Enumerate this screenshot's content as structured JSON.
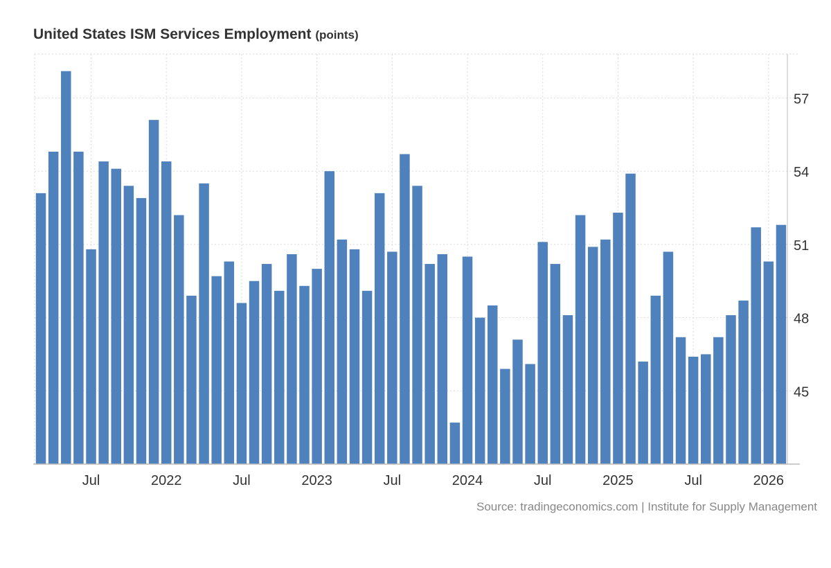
{
  "chart_data": {
    "type": "bar",
    "title": "United States ISM Services Employment",
    "unit": "(points)",
    "source": "Source: tradingeconomics.com | Institute for Supply Management",
    "xlabel": "",
    "ylabel": "",
    "ylim": [
      42.0,
      58.8
    ],
    "yticks": [
      45,
      48,
      51,
      54,
      57
    ],
    "grid": true,
    "colors": {
      "bar": "#4f81bd",
      "grid": "#d9d9d9",
      "axis": "#bbbbbb",
      "tick_text": "#333333"
    },
    "categories": [
      "2021-03",
      "2021-04",
      "2021-05",
      "2021-06",
      "2021-07",
      "2021-08",
      "2021-09",
      "2021-10",
      "2021-11",
      "2021-12",
      "2022-01",
      "2022-02",
      "2022-03",
      "2022-04",
      "2022-05",
      "2022-06",
      "2022-07",
      "2022-08",
      "2022-09",
      "2022-10",
      "2022-11",
      "2022-12",
      "2023-01",
      "2023-02",
      "2023-03",
      "2023-04",
      "2023-05",
      "2023-06",
      "2023-07",
      "2023-08",
      "2023-09",
      "2023-10",
      "2023-11",
      "2023-12",
      "2024-01",
      "2024-02",
      "2024-03",
      "2024-04",
      "2024-05",
      "2024-06",
      "2024-07",
      "2024-08",
      "2024-09",
      "2024-10",
      "2024-11",
      "2024-12",
      "2025-01",
      "2025-02",
      "2025-03",
      "2025-04",
      "2025-05",
      "2025-06",
      "2025-07",
      "2025-08",
      "2025-09",
      "2025-10",
      "2025-11",
      "2025-12",
      "2026-01",
      "2026-02"
    ],
    "values": [
      53.1,
      54.8,
      58.1,
      54.8,
      50.8,
      54.4,
      54.1,
      53.4,
      52.9,
      56.1,
      54.4,
      52.2,
      48.9,
      53.5,
      49.7,
      50.3,
      48.6,
      49.5,
      50.2,
      49.1,
      50.6,
      49.3,
      50.0,
      54.0,
      51.2,
      50.8,
      49.1,
      53.1,
      50.7,
      54.7,
      53.4,
      50.2,
      50.6,
      43.7,
      50.5,
      48.0,
      48.5,
      45.9,
      47.1,
      46.1,
      51.1,
      50.2,
      48.1,
      52.2,
      50.9,
      51.2,
      52.3,
      53.9,
      46.2,
      48.9,
      50.7,
      47.2,
      46.4,
      46.5,
      47.2,
      48.1,
      48.7,
      51.7,
      50.3,
      51.8
    ],
    "x_ticks": [
      {
        "label": "Jul",
        "index": 4
      },
      {
        "label": "2022",
        "index": 10
      },
      {
        "label": "Jul",
        "index": 16
      },
      {
        "label": "2023",
        "index": 22
      },
      {
        "label": "Jul",
        "index": 28
      },
      {
        "label": "2024",
        "index": 34
      },
      {
        "label": "Jul",
        "index": 40
      },
      {
        "label": "2025",
        "index": 46
      },
      {
        "label": "Jul",
        "index": 52
      },
      {
        "label": "2026",
        "index": 58
      }
    ]
  }
}
